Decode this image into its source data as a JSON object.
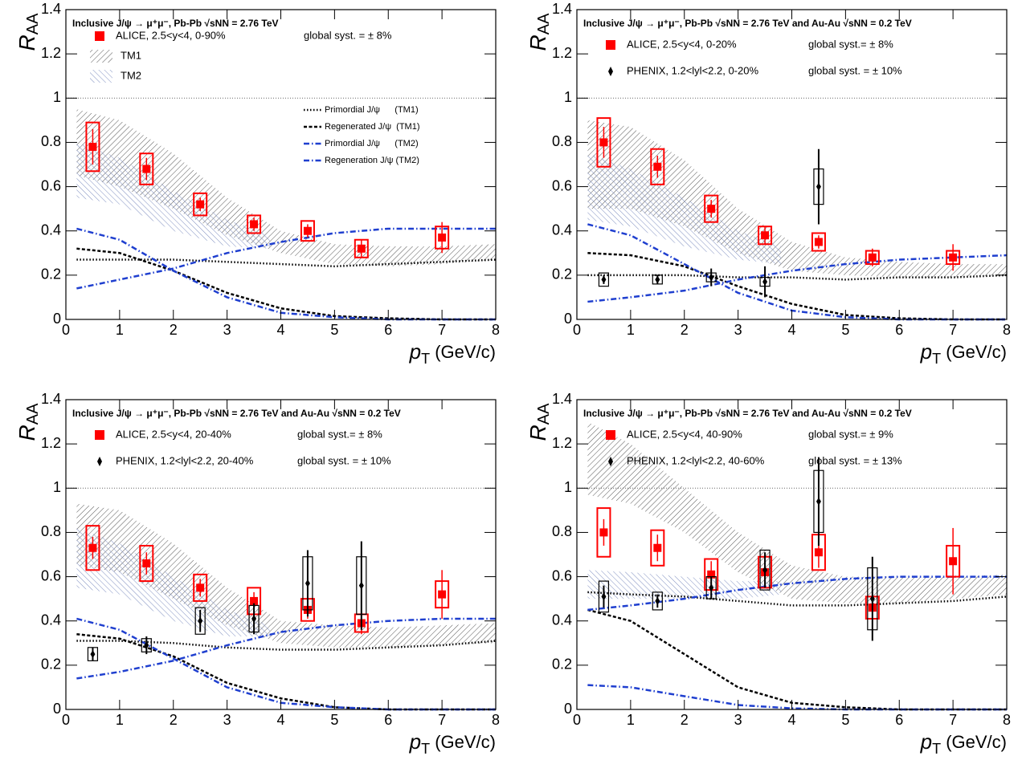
{
  "chart_data": [
    {
      "type": "scatter",
      "title": "Inclusive J/ψ → μ⁺μ⁻, Pb-Pb √sNN = 2.76 TeV",
      "ylabel": {
        "symbol": "R",
        "sub": "AA"
      },
      "xlabel": {
        "symbol": "p",
        "sub": "T",
        "unit": " (GeV/c)"
      },
      "xlim": [
        0,
        8
      ],
      "ylim": [
        0,
        1.4
      ],
      "xticks": [
        0,
        1,
        2,
        3,
        4,
        5,
        6,
        7,
        8
      ],
      "yticks": [
        0,
        0.2,
        0.4,
        0.6,
        0.8,
        1,
        1.2,
        1.4
      ],
      "reference_line": 1,
      "bands": [
        {
          "name": "TM1",
          "color": "#555555",
          "hatch": "/",
          "x": [
            0.2,
            1,
            2,
            3,
            4,
            5,
            6,
            7,
            8
          ],
          "upper": [
            0.95,
            0.9,
            0.75,
            0.55,
            0.4,
            0.34,
            0.33,
            0.33,
            0.34
          ],
          "lower": [
            0.65,
            0.6,
            0.5,
            0.38,
            0.3,
            0.25,
            0.24,
            0.25,
            0.27
          ]
        },
        {
          "name": "TM2",
          "color": "#7f8fc0",
          "hatch": "\\",
          "x": [
            0.2,
            1,
            2,
            3,
            3.8
          ],
          "upper": [
            0.8,
            0.73,
            0.58,
            0.45,
            0.38
          ],
          "lower": [
            0.55,
            0.52,
            0.4,
            0.33,
            0.32
          ]
        }
      ],
      "curves": [
        {
          "name": "Primordial J/ψ      (TM1)",
          "color": "#000000",
          "style": "dotted",
          "x": [
            0.2,
            1,
            2,
            3,
            4,
            5,
            6,
            7,
            8
          ],
          "values": [
            0.27,
            0.27,
            0.27,
            0.26,
            0.25,
            0.24,
            0.25,
            0.26,
            0.27
          ]
        },
        {
          "name": "Regenerated J/ψ  (TM1)",
          "color": "#000000",
          "style": "dashed",
          "x": [
            0.2,
            1,
            2,
            3,
            4,
            5,
            6,
            7,
            8
          ],
          "values": [
            0.32,
            0.3,
            0.22,
            0.12,
            0.05,
            0.015,
            0.005,
            0,
            0
          ]
        },
        {
          "name": "Primordial J/ψ      (TM2)",
          "color": "#1f3fcf",
          "style": "dashdot",
          "x": [
            0.2,
            1,
            2,
            3,
            4,
            5,
            6,
            7,
            8
          ],
          "values": [
            0.14,
            0.18,
            0.23,
            0.3,
            0.35,
            0.39,
            0.41,
            0.41,
            0.41
          ]
        },
        {
          "name": "Regeneration J/ψ (TM2)",
          "color": "#1f3fcf",
          "style": "dashdot",
          "x": [
            0.2,
            1,
            2,
            3,
            4,
            5,
            6,
            7,
            8
          ],
          "values": [
            0.41,
            0.36,
            0.22,
            0.1,
            0.03,
            0.01,
            0,
            0,
            0
          ]
        }
      ],
      "series": [
        {
          "name": "ALICE, 2.5<y<4, 0-90%",
          "note": "global syst. = ± 8%",
          "color": "#ff0000",
          "marker": "square",
          "x": [
            0.5,
            1.5,
            2.5,
            3.5,
            4.5,
            5.5,
            7
          ],
          "values": [
            0.78,
            0.68,
            0.52,
            0.43,
            0.4,
            0.32,
            0.37
          ],
          "errors": [
            0.08,
            0.05,
            0.03,
            0.03,
            0.03,
            0.04,
            0.07
          ],
          "syst": [
            0.11,
            0.07,
            0.05,
            0.04,
            0.045,
            0.04,
            0.05
          ]
        }
      ]
    },
    {
      "type": "scatter",
      "title": "Inclusive J/ψ → μ⁺μ⁻, Pb-Pb √sNN = 2.76 TeV and Au-Au √sNN = 0.2 TeV",
      "ylabel": {
        "symbol": "R",
        "sub": "AA"
      },
      "xlabel": {
        "symbol": "p",
        "sub": "T",
        "unit": " (GeV/c)"
      },
      "xlim": [
        0,
        8
      ],
      "ylim": [
        0,
        1.4
      ],
      "xticks": [
        0,
        1,
        2,
        3,
        4,
        5,
        6,
        7,
        8
      ],
      "yticks": [
        0,
        0.2,
        0.4,
        0.6,
        0.8,
        1,
        1.2,
        1.4
      ],
      "reference_line": 1,
      "bands": [
        {
          "color": "#555555",
          "hatch": "/",
          "x": [
            0.2,
            1,
            2,
            3,
            4,
            5,
            6,
            7,
            8
          ],
          "upper": [
            0.9,
            0.87,
            0.72,
            0.5,
            0.35,
            0.28,
            0.26,
            0.25,
            0.25
          ],
          "lower": [
            0.5,
            0.5,
            0.42,
            0.3,
            0.22,
            0.2,
            0.19,
            0.19,
            0.2
          ]
        },
        {
          "color": "#7f8fc0",
          "hatch": "\\",
          "x": [
            0.2,
            1,
            2,
            3,
            3.8
          ],
          "upper": [
            0.75,
            0.68,
            0.55,
            0.4,
            0.33
          ],
          "lower": [
            0.45,
            0.42,
            0.33,
            0.27,
            0.25
          ]
        }
      ],
      "curves": [
        {
          "color": "#000000",
          "style": "dotted",
          "x": [
            0.2,
            1,
            2,
            3,
            4,
            5,
            6,
            7,
            8
          ],
          "values": [
            0.2,
            0.2,
            0.2,
            0.19,
            0.19,
            0.18,
            0.19,
            0.19,
            0.2
          ]
        },
        {
          "color": "#000000",
          "style": "dashed",
          "x": [
            0.2,
            1,
            2,
            3,
            4,
            5,
            6,
            7,
            8
          ],
          "values": [
            0.3,
            0.29,
            0.24,
            0.15,
            0.07,
            0.02,
            0.005,
            0,
            0
          ]
        },
        {
          "color": "#1f3fcf",
          "style": "dashdot",
          "x": [
            0.2,
            1,
            2,
            3,
            4,
            5,
            6,
            7,
            8
          ],
          "values": [
            0.08,
            0.1,
            0.13,
            0.18,
            0.22,
            0.25,
            0.27,
            0.28,
            0.29
          ]
        },
        {
          "color": "#1f3fcf",
          "style": "dashdot",
          "x": [
            0.2,
            1,
            2,
            3,
            4,
            5,
            6,
            7,
            8
          ],
          "values": [
            0.43,
            0.38,
            0.25,
            0.12,
            0.04,
            0.01,
            0,
            0,
            0
          ]
        }
      ],
      "series": [
        {
          "name": "ALICE, 2.5<y<4, 0-20%",
          "note": "global syst.= ± 8%",
          "color": "#ff0000",
          "marker": "square",
          "x": [
            0.5,
            1.5,
            2.5,
            3.5,
            4.5,
            5.5,
            7
          ],
          "values": [
            0.8,
            0.69,
            0.5,
            0.38,
            0.35,
            0.28,
            0.28
          ],
          "errors": [
            0.07,
            0.05,
            0.04,
            0.04,
            0.03,
            0.04,
            0.06
          ],
          "syst": [
            0.11,
            0.08,
            0.06,
            0.04,
            0.04,
            0.03,
            0.03
          ]
        },
        {
          "name": "PHENIX, 1.2<lyl<2.2, 0-20%",
          "note": "global syst. = ± 10%",
          "color": "#000000",
          "marker": "diamond",
          "x": [
            0.5,
            1.5,
            2.5,
            3.5,
            4.5
          ],
          "values": [
            0.18,
            0.18,
            0.19,
            0.17,
            0.6
          ],
          "errors": [
            0.02,
            0.02,
            0.04,
            0.07,
            0.17
          ],
          "syst": [
            0.03,
            0.02,
            0.02,
            0.02,
            0.08
          ]
        }
      ]
    },
    {
      "type": "scatter",
      "title": "Inclusive J/ψ → μ⁺μ⁻, Pb-Pb √sNN = 2.76 TeV and Au-Au √sNN = 0.2 TeV",
      "ylabel": {
        "symbol": "R",
        "sub": "AA"
      },
      "xlabel": {
        "symbol": "p",
        "sub": "T",
        "unit": " (GeV/c)"
      },
      "xlim": [
        0,
        8
      ],
      "ylim": [
        0,
        1.4
      ],
      "xticks": [
        0,
        1,
        2,
        3,
        4,
        5,
        6,
        7,
        8
      ],
      "yticks": [
        0,
        0.2,
        0.4,
        0.6,
        0.8,
        1,
        1.2,
        1.4
      ],
      "reference_line": 1,
      "bands": [
        {
          "color": "#555555",
          "hatch": "/",
          "x": [
            0.2,
            1,
            2,
            3,
            4,
            5,
            6,
            7,
            8
          ],
          "upper": [
            0.93,
            0.9,
            0.75,
            0.55,
            0.4,
            0.38,
            0.37,
            0.38,
            0.39
          ],
          "lower": [
            0.65,
            0.62,
            0.5,
            0.38,
            0.3,
            0.28,
            0.28,
            0.29,
            0.3
          ]
        },
        {
          "color": "#7f8fc0",
          "hatch": "\\",
          "x": [
            0.2,
            1,
            2,
            3,
            3.8
          ],
          "upper": [
            0.82,
            0.75,
            0.6,
            0.45,
            0.38
          ],
          "lower": [
            0.55,
            0.52,
            0.4,
            0.33,
            0.33
          ]
        }
      ],
      "curves": [
        {
          "color": "#000000",
          "style": "dotted",
          "x": [
            0.2,
            1,
            2,
            3,
            4,
            5,
            6,
            7,
            8
          ],
          "values": [
            0.31,
            0.31,
            0.3,
            0.28,
            0.27,
            0.27,
            0.28,
            0.29,
            0.31
          ]
        },
        {
          "color": "#000000",
          "style": "dashed",
          "x": [
            0.2,
            1,
            2,
            3,
            4,
            5,
            6,
            7,
            8
          ],
          "values": [
            0.34,
            0.32,
            0.24,
            0.12,
            0.05,
            0.01,
            0,
            0,
            0
          ]
        },
        {
          "color": "#1f3fcf",
          "style": "dashdot",
          "x": [
            0.2,
            1,
            2,
            3,
            4,
            5,
            6,
            7,
            8
          ],
          "values": [
            0.14,
            0.17,
            0.22,
            0.29,
            0.35,
            0.38,
            0.4,
            0.41,
            0.41
          ]
        },
        {
          "color": "#1f3fcf",
          "style": "dashdot",
          "x": [
            0.2,
            1,
            2,
            3,
            4,
            5,
            6,
            7,
            8
          ],
          "values": [
            0.41,
            0.36,
            0.23,
            0.1,
            0.03,
            0.01,
            0,
            0,
            0
          ]
        }
      ],
      "series": [
        {
          "name": "ALICE, 2.5<y<4, 20-40%",
          "note": "global syst.= ± 8%",
          "color": "#ff0000",
          "marker": "square",
          "x": [
            0.5,
            1.5,
            2.5,
            3.5,
            4.5,
            5.5,
            7
          ],
          "values": [
            0.73,
            0.66,
            0.55,
            0.49,
            0.45,
            0.39,
            0.52
          ],
          "errors": [
            0.05,
            0.05,
            0.04,
            0.04,
            0.04,
            0.05,
            0.11
          ],
          "syst": [
            0.1,
            0.08,
            0.06,
            0.06,
            0.05,
            0.04,
            0.06
          ]
        },
        {
          "name": "PHENIX, 1.2<lyl<2.2, 20-40%",
          "note": "global syst. = ± 10%",
          "color": "#000000",
          "marker": "diamond",
          "x": [
            0.5,
            1.5,
            2.5,
            3.5,
            4.5,
            5.5
          ],
          "values": [
            0.25,
            0.29,
            0.4,
            0.41,
            0.57,
            0.56
          ],
          "errors": [
            0.03,
            0.04,
            0.05,
            0.07,
            0.15,
            0.2
          ],
          "syst": [
            0.03,
            0.03,
            0.06,
            0.06,
            0.12,
            0.13
          ]
        }
      ]
    },
    {
      "type": "scatter",
      "title": "Inclusive J/ψ → μ⁺μ⁻, Pb-Pb √sNN = 2.76 TeV and Au-Au √sNN = 0.2 TeV",
      "ylabel": {
        "symbol": "R",
        "sub": "AA"
      },
      "xlabel": {
        "symbol": "p",
        "sub": "T",
        "unit": " (GeV/c)"
      },
      "xlim": [
        0,
        8
      ],
      "ylim": [
        0,
        1.4
      ],
      "xticks": [
        0,
        1,
        2,
        3,
        4,
        5,
        6,
        7,
        8
      ],
      "yticks": [
        0,
        0.2,
        0.4,
        0.6,
        0.8,
        1,
        1.2,
        1.4
      ],
      "reference_line": 1,
      "bands": [
        {
          "color": "#555555",
          "hatch": "/",
          "x": [
            0.2,
            1,
            2,
            3,
            4,
            5,
            6,
            7,
            8
          ],
          "upper": [
            1.3,
            1.2,
            1.0,
            0.8,
            0.65,
            0.6,
            0.6,
            0.6,
            0.61
          ],
          "lower": [
            0.97,
            0.93,
            0.8,
            0.62,
            0.5,
            0.48,
            0.48,
            0.5,
            0.52
          ]
        },
        {
          "color": "#7f8fc0",
          "hatch": "\\",
          "x": [
            0.2,
            1,
            2,
            3,
            3.8
          ],
          "upper": [
            0.63,
            0.62,
            0.6,
            0.58,
            0.58
          ],
          "lower": [
            0.5,
            0.5,
            0.5,
            0.5,
            0.52
          ]
        }
      ],
      "curves": [
        {
          "color": "#000000",
          "style": "dotted",
          "x": [
            0.2,
            1,
            2,
            3,
            4,
            5,
            6,
            7,
            8
          ],
          "values": [
            0.53,
            0.52,
            0.51,
            0.49,
            0.47,
            0.47,
            0.48,
            0.49,
            0.51
          ]
        },
        {
          "color": "#000000",
          "style": "dashed",
          "x": [
            0.2,
            1,
            2,
            3,
            4,
            5,
            6,
            7,
            8
          ],
          "values": [
            0.45,
            0.4,
            0.25,
            0.1,
            0.03,
            0.01,
            0,
            0,
            0
          ]
        },
        {
          "color": "#1f3fcf",
          "style": "dashdot",
          "x": [
            0.2,
            1,
            2,
            3,
            4,
            5,
            6,
            7,
            8
          ],
          "values": [
            0.45,
            0.47,
            0.5,
            0.54,
            0.57,
            0.59,
            0.6,
            0.6,
            0.6
          ]
        },
        {
          "color": "#1f3fcf",
          "style": "dashdot",
          "x": [
            0.2,
            1,
            2,
            3,
            4,
            5,
            6,
            7,
            8
          ],
          "values": [
            0.11,
            0.1,
            0.06,
            0.02,
            0.005,
            0,
            0,
            0,
            0
          ]
        }
      ],
      "series": [
        {
          "name": "ALICE, 2.5<y<4, 40-90%",
          "note": "global syst.= ± 9%",
          "color": "#ff0000",
          "marker": "square",
          "x": [
            0.5,
            1.5,
            2.5,
            3.5,
            4.5,
            5.5,
            7
          ],
          "values": [
            0.8,
            0.73,
            0.61,
            0.62,
            0.71,
            0.46,
            0.67
          ],
          "errors": [
            0.06,
            0.06,
            0.06,
            0.06,
            0.07,
            0.06,
            0.15
          ],
          "syst": [
            0.11,
            0.08,
            0.07,
            0.07,
            0.08,
            0.05,
            0.07
          ]
        },
        {
          "name": "PHENIX, 1.2<lyl<2.2, 40-60%",
          "note": "global syst. = ± 13%",
          "color": "#000000",
          "marker": "diamond",
          "x": [
            0.5,
            1.5,
            2.5,
            3.5,
            4.5,
            5.5
          ],
          "values": [
            0.51,
            0.49,
            0.55,
            0.63,
            0.94,
            0.5
          ],
          "errors": [
            0.05,
            0.03,
            0.05,
            0.08,
            0.2,
            0.19
          ],
          "syst": [
            0.07,
            0.04,
            0.05,
            0.09,
            0.14,
            0.14
          ]
        }
      ]
    }
  ]
}
